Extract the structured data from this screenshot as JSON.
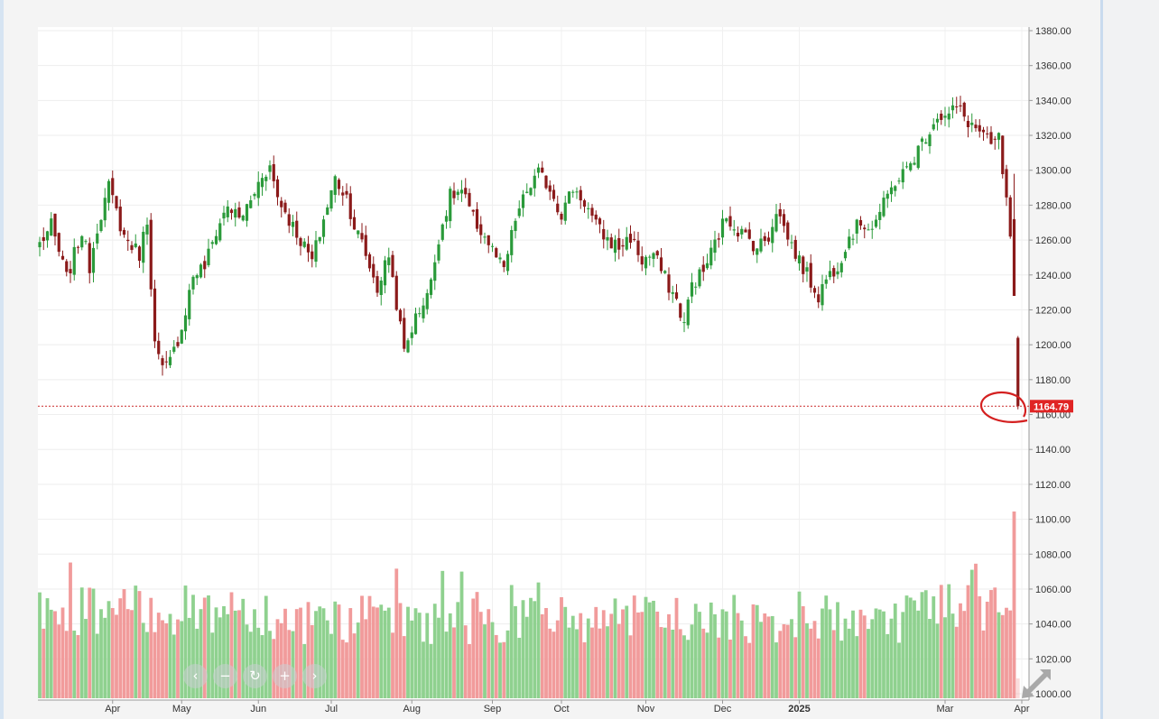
{
  "chart_data": {
    "type": "candlestick",
    "title": "",
    "xlabel": "",
    "ylabel": "",
    "ylim": [
      1000,
      1380
    ],
    "y_ticks": [
      "1380.00",
      "1360.00",
      "1340.00",
      "1320.00",
      "1300.00",
      "1280.00",
      "1260.00",
      "1240.00",
      "1220.00",
      "1200.00",
      "1180.00",
      "1160.00",
      "1140.00",
      "1120.00",
      "1100.00",
      "1080.00",
      "1060.00",
      "1040.00",
      "1020.00",
      "1000.00"
    ],
    "x_ticks": [
      {
        "label": "Apr",
        "i": 19,
        "year": false
      },
      {
        "label": "May",
        "i": 37,
        "year": false
      },
      {
        "label": "Jun",
        "i": 57,
        "year": false
      },
      {
        "label": "Jul",
        "i": 76,
        "year": false
      },
      {
        "label": "Aug",
        "i": 97,
        "year": false
      },
      {
        "label": "Sep",
        "i": 118,
        "year": false
      },
      {
        "label": "Oct",
        "i": 136,
        "year": false
      },
      {
        "label": "Nov",
        "i": 158,
        "year": false
      },
      {
        "label": "Dec",
        "i": 178,
        "year": false
      },
      {
        "label": "2025",
        "i": 198,
        "year": true
      },
      {
        "label": "Mar",
        "i": 236,
        "year": false
      },
      {
        "label": "Apr",
        "i": 256,
        "year": false
      }
    ],
    "last_price": 1164.79,
    "last_price_label": "1164.79",
    "colors": {
      "up": "#2a9a3a",
      "down": "#8b1a1a",
      "vol_up": "#8fd18f",
      "vol_down": "#f19b9b",
      "price_line": "#cc2b2b",
      "circle": "#d42020"
    },
    "anchors": [
      [
        0,
        1258
      ],
      [
        3,
        1268
      ],
      [
        7,
        1238
      ],
      [
        11,
        1265
      ],
      [
        13,
        1245
      ],
      [
        15,
        1268
      ],
      [
        18,
        1290
      ],
      [
        22,
        1262
      ],
      [
        26,
        1252
      ],
      [
        28,
        1272
      ],
      [
        30,
        1200
      ],
      [
        32,
        1185
      ],
      [
        34,
        1190
      ],
      [
        37,
        1210
      ],
      [
        40,
        1240
      ],
      [
        43,
        1245
      ],
      [
        46,
        1265
      ],
      [
        49,
        1280
      ],
      [
        52,
        1272
      ],
      [
        55,
        1282
      ],
      [
        58,
        1298
      ],
      [
        60,
        1302
      ],
      [
        62,
        1285
      ],
      [
        65,
        1272
      ],
      [
        68,
        1260
      ],
      [
        71,
        1248
      ],
      [
        74,
        1272
      ],
      [
        77,
        1295
      ],
      [
        80,
        1285
      ],
      [
        82,
        1268
      ],
      [
        84,
        1258
      ],
      [
        86,
        1245
      ],
      [
        88,
        1232
      ],
      [
        91,
        1252
      ],
      [
        93,
        1224
      ],
      [
        95,
        1196
      ],
      [
        97,
        1210
      ],
      [
        100,
        1225
      ],
      [
        102,
        1235
      ],
      [
        104,
        1262
      ],
      [
        107,
        1285
      ],
      [
        110,
        1288
      ],
      [
        113,
        1272
      ],
      [
        116,
        1262
      ],
      [
        119,
        1250
      ],
      [
        121,
        1242
      ],
      [
        124,
        1272
      ],
      [
        127,
        1288
      ],
      [
        130,
        1298
      ],
      [
        133,
        1290
      ],
      [
        136,
        1275
      ],
      [
        139,
        1290
      ],
      [
        142,
        1282
      ],
      [
        145,
        1268
      ],
      [
        148,
        1260
      ],
      [
        151,
        1256
      ],
      [
        154,
        1262
      ],
      [
        157,
        1248
      ],
      [
        160,
        1252
      ],
      [
        163,
        1238
      ],
      [
        166,
        1225
      ],
      [
        168,
        1212
      ],
      [
        170,
        1235
      ],
      [
        173,
        1242
      ],
      [
        176,
        1258
      ],
      [
        179,
        1274
      ],
      [
        182,
        1266
      ],
      [
        185,
        1260
      ],
      [
        187,
        1256
      ],
      [
        190,
        1262
      ],
      [
        192,
        1278
      ],
      [
        195,
        1262
      ],
      [
        198,
        1248
      ],
      [
        201,
        1236
      ],
      [
        203,
        1228
      ],
      [
        205,
        1238
      ],
      [
        208,
        1246
      ],
      [
        211,
        1262
      ],
      [
        214,
        1270
      ],
      [
        217,
        1268
      ],
      [
        220,
        1280
      ],
      [
        223,
        1294
      ],
      [
        226,
        1300
      ],
      [
        229,
        1312
      ],
      [
        232,
        1324
      ],
      [
        234,
        1332
      ],
      [
        236,
        1330
      ],
      [
        239,
        1336
      ],
      [
        242,
        1328
      ],
      [
        245,
        1322
      ],
      [
        248,
        1314
      ],
      [
        250,
        1318
      ],
      [
        253,
        1262
      ]
    ],
    "final_candles": [
      {
        "open": 1272,
        "high": 1298,
        "low": 1228,
        "close": 1228
      },
      {
        "open": 1204,
        "high": 1205,
        "low": 1163,
        "close": 1164.79
      }
    ],
    "volume": {
      "ylim": [
        0,
        1200
      ]
    }
  },
  "controls": {
    "nav": [
      {
        "icon": "chevron-left-icon",
        "glyph": "‹"
      },
      {
        "icon": "minus-icon",
        "glyph": "−"
      },
      {
        "icon": "reset-icon",
        "glyph": "↻"
      },
      {
        "icon": "plus-icon",
        "glyph": "+"
      },
      {
        "icon": "chevron-right-icon",
        "glyph": "›"
      }
    ],
    "expand_icon": "expand-arrows-icon"
  }
}
